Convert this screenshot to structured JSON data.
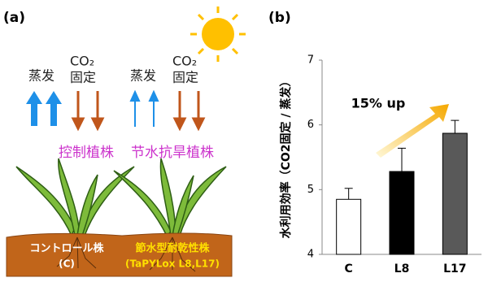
{
  "panel_a": {
    "label": "(a)",
    "evaporation": "蒸发",
    "co2": "CO₂",
    "fixation": "固定",
    "control_plant": "控制植株",
    "drought_plant": "节水抗旱植株",
    "control_soil": "コントロール株",
    "control_code": "(C)",
    "drought_soil": "節水型耐乾性株",
    "drought_code": "(TaPYLox L8,L17)"
  },
  "chart_data": {
    "type": "bar",
    "panel_label": "(b)",
    "y_label": "水利用効率（CO2固定 / 蒸发）",
    "annotation": "15% up",
    "categories": [
      "C",
      "L8",
      "L17"
    ],
    "values": [
      4.85,
      5.28,
      5.87
    ],
    "errors": [
      0.17,
      0.36,
      0.2
    ],
    "colors": [
      "#ffffff",
      "#000000",
      "#595959"
    ],
    "ylim": [
      4,
      7
    ],
    "yticks": [
      4,
      5,
      6,
      7
    ],
    "grid": false
  }
}
